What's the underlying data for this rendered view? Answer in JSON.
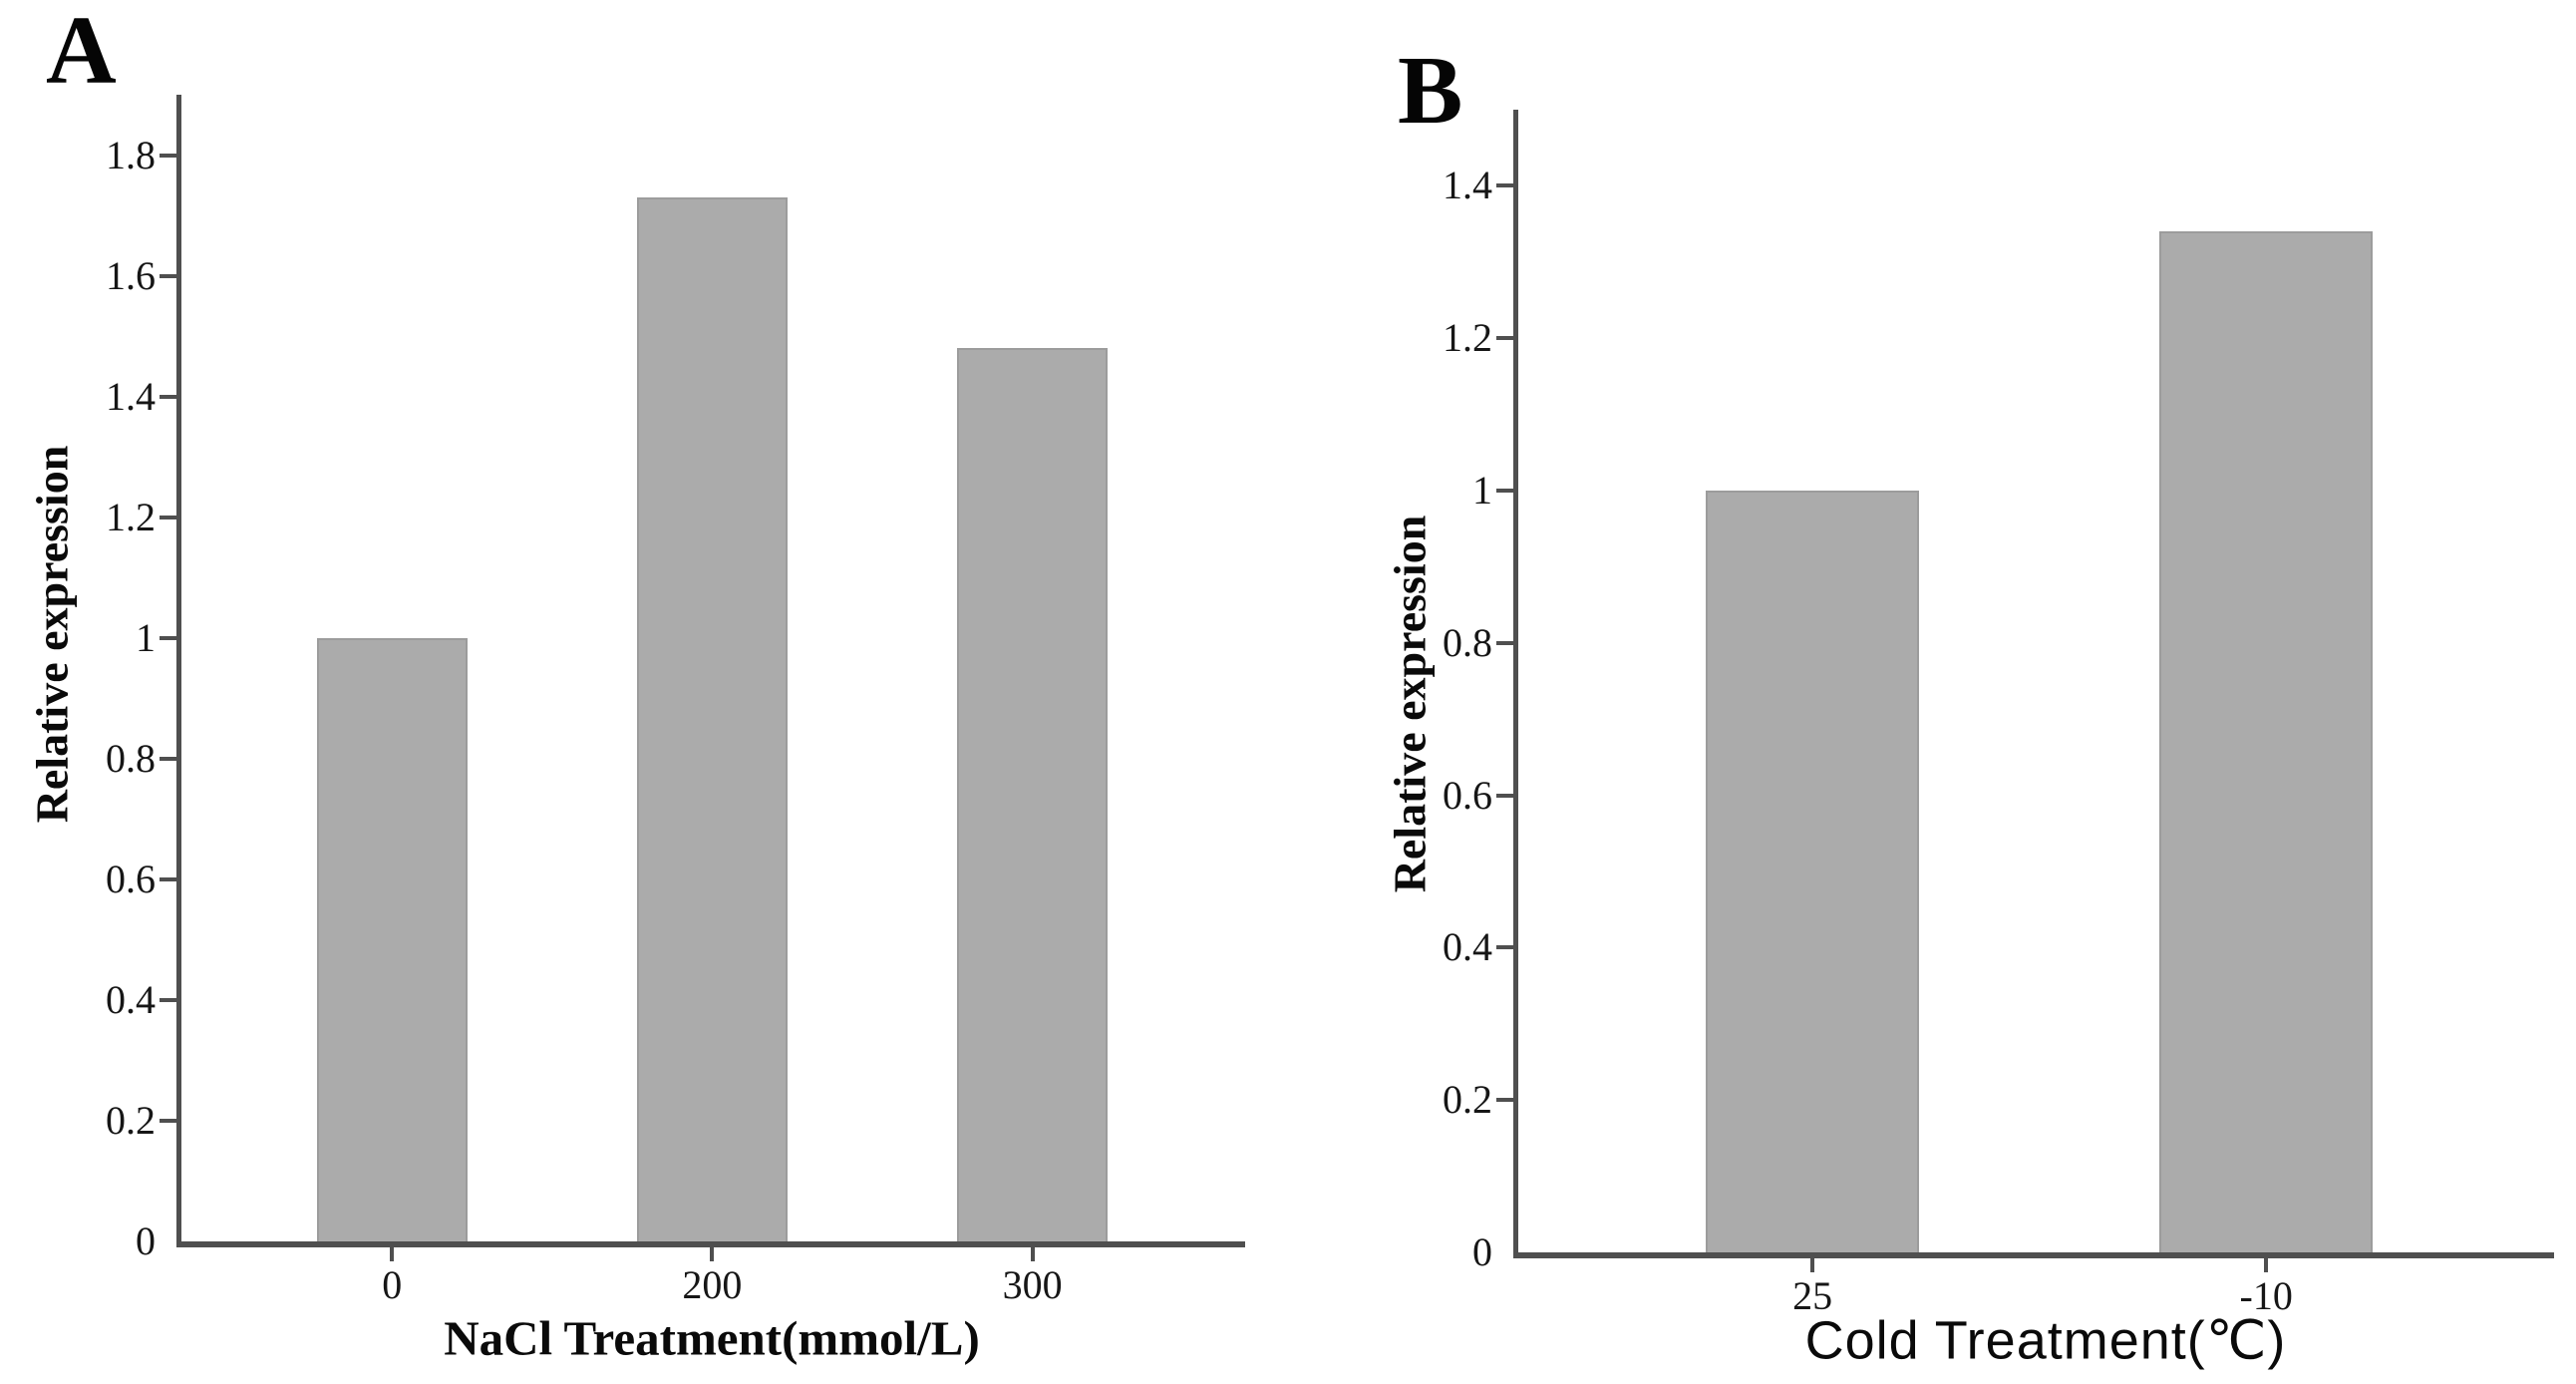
{
  "figure": {
    "background": "#ffffff",
    "bar_fill": "#ababab",
    "bar_edge": "#9c9c9c",
    "axis_color": "#4f4f4f",
    "text_color": "#111111"
  },
  "chart_data": [
    {
      "type": "bar",
      "panel_label": "A",
      "title": "",
      "xlabel": "NaCl Treatment(mmol/L)",
      "ylabel": "Relative expression",
      "categories": [
        "0",
        "200",
        "300"
      ],
      "values": [
        1.0,
        1.73,
        1.48
      ],
      "ylim": [
        0,
        1.9
      ],
      "yticks": [
        "0",
        "0.2",
        "0.4",
        "0.6",
        "0.8",
        "1",
        "1.2",
        "1.4",
        "1.6",
        "1.8"
      ],
      "grid": false,
      "legend": "none",
      "bar_centers_frac": [
        0.198,
        0.499,
        0.8
      ],
      "bar_width_frac": 0.142
    },
    {
      "type": "bar",
      "panel_label": "B",
      "title": "",
      "xlabel": "Cold Treatment(℃)",
      "ylabel": "Relative expression",
      "categories": [
        "25",
        "-10"
      ],
      "values": [
        1.0,
        1.34
      ],
      "ylim": [
        0,
        1.5
      ],
      "yticks": [
        "0",
        "0.2",
        "0.4",
        "0.6",
        "0.8",
        "1",
        "1.2",
        "1.4"
      ],
      "grid": false,
      "legend": "none",
      "bar_centers_frac": [
        0.284,
        0.722
      ],
      "bar_width_frac": 0.206
    }
  ]
}
